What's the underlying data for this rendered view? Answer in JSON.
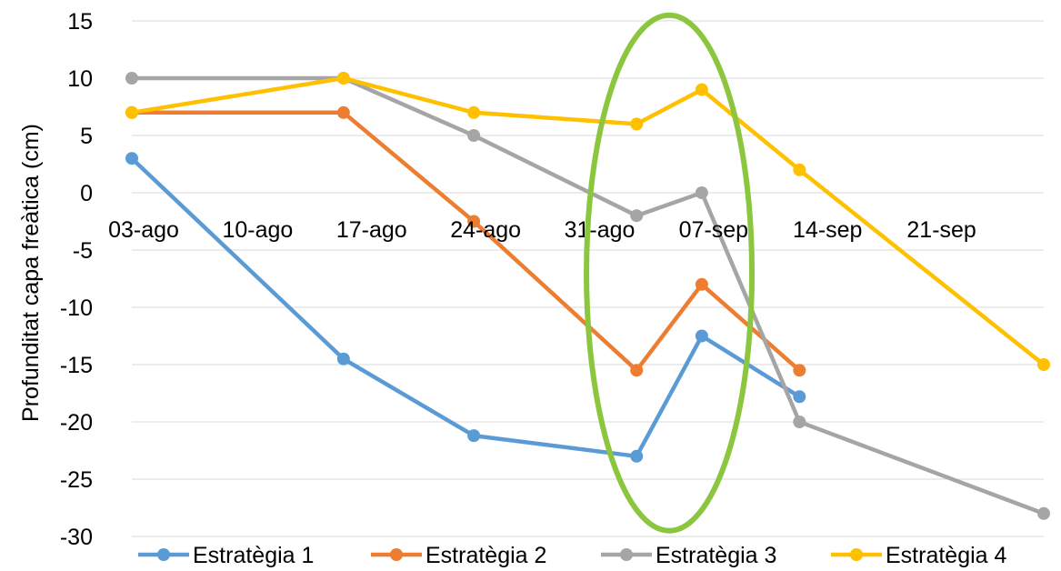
{
  "chart_data": {
    "type": "line",
    "title": "",
    "xlabel": "",
    "ylabel": "Profunditat capa freàtica (cm)",
    "x_tick_labels": [
      "03-ago",
      "10-ago",
      "17-ago",
      "24-ago",
      "31-ago",
      "07-sep",
      "14-sep",
      "21-sep"
    ],
    "x_tick_dates": [
      "2023-08-03",
      "2023-08-10",
      "2023-08-17",
      "2023-08-24",
      "2023-08-31",
      "2023-09-07",
      "2023-09-14",
      "2023-09-21"
    ],
    "xlim": [
      "2023-08-03",
      "2023-09-28"
    ],
    "ylim": [
      -30,
      15
    ],
    "y_ticks": [
      15,
      10,
      5,
      0,
      -5,
      -10,
      -15,
      -20,
      -25,
      -30
    ],
    "grid": true,
    "legend_position": "bottom",
    "series": [
      {
        "name": "Estratègia 1",
        "color": "#5B9BD5",
        "points": [
          {
            "x": "2023-08-03",
            "y": 3
          },
          {
            "x": "2023-08-16",
            "y": -14.5
          },
          {
            "x": "2023-08-24",
            "y": -21.2
          },
          {
            "x": "2023-09-03",
            "y": -23
          },
          {
            "x": "2023-09-07",
            "y": -12.5
          },
          {
            "x": "2023-09-13",
            "y": -17.8
          }
        ]
      },
      {
        "name": "Estratègia 2",
        "color": "#ED7D31",
        "points": [
          {
            "x": "2023-08-03",
            "y": 7
          },
          {
            "x": "2023-08-16",
            "y": 7
          },
          {
            "x": "2023-08-24",
            "y": -2.5
          },
          {
            "x": "2023-09-03",
            "y": -15.5
          },
          {
            "x": "2023-09-07",
            "y": -8
          },
          {
            "x": "2023-09-13",
            "y": -15.5
          }
        ]
      },
      {
        "name": "Estratègia 3",
        "color": "#A5A5A5",
        "points": [
          {
            "x": "2023-08-03",
            "y": 10
          },
          {
            "x": "2023-08-16",
            "y": 10
          },
          {
            "x": "2023-08-24",
            "y": 5
          },
          {
            "x": "2023-09-03",
            "y": -2
          },
          {
            "x": "2023-09-07",
            "y": 0
          },
          {
            "x": "2023-09-13",
            "y": -20
          },
          {
            "x": "2023-09-28",
            "y": -28
          }
        ]
      },
      {
        "name": "Estratègia 4",
        "color": "#FFC000",
        "points": [
          {
            "x": "2023-08-03",
            "y": 7
          },
          {
            "x": "2023-08-16",
            "y": 10
          },
          {
            "x": "2023-08-24",
            "y": 7
          },
          {
            "x": "2023-09-03",
            "y": 6
          },
          {
            "x": "2023-09-07",
            "y": 9
          },
          {
            "x": "2023-09-13",
            "y": 2
          },
          {
            "x": "2023-09-28",
            "y": -15
          }
        ]
      }
    ],
    "annotations": [
      {
        "type": "ellipse",
        "color": "#8CC63F",
        "x_center": "2023-09-05",
        "y_range": [
          -29.5,
          15.5
        ]
      }
    ]
  }
}
